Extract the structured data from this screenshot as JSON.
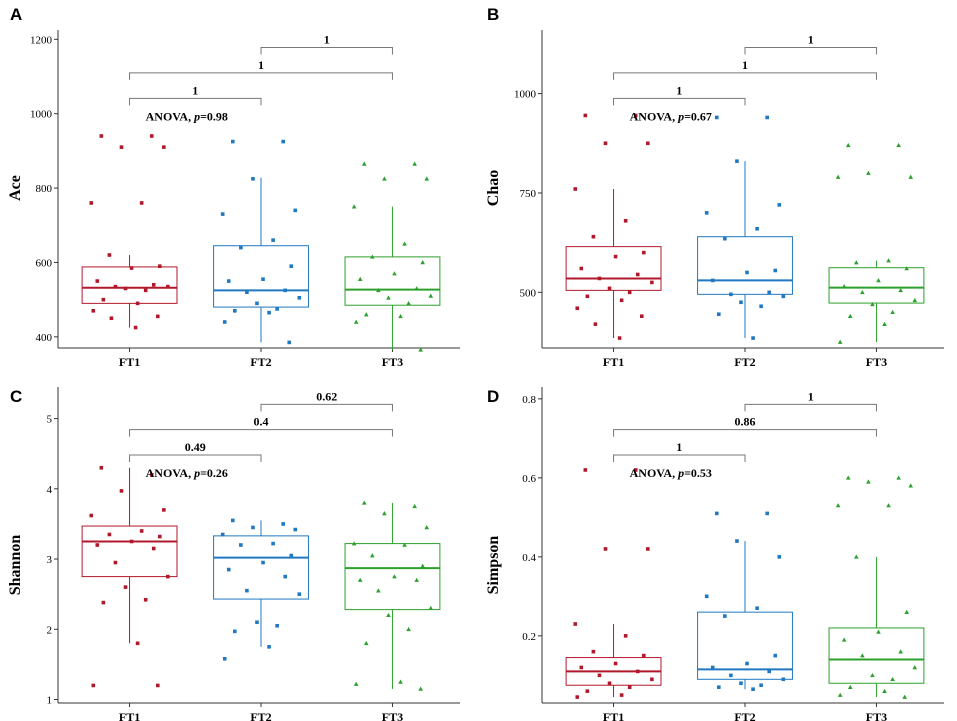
{
  "chart_data": [
    {
      "type": "box",
      "panel": "A",
      "ylabel": "Ace",
      "categories": [
        "FT1",
        "FT2",
        "FT3"
      ],
      "colors": [
        "#b2182b",
        "#1f78c1",
        "#2ca02c"
      ],
      "ylim": [
        370,
        1225
      ],
      "yticks": [
        400,
        600,
        800,
        1000,
        1200
      ],
      "annotation": {
        "prefix": "ANOVA, ",
        "p_italic": "p",
        "suffix": "=0.98"
      },
      "boxes": [
        {
          "min": 425,
          "q1": 490,
          "median": 532,
          "q3": 588,
          "max": 620
        },
        {
          "min": 385,
          "q1": 480,
          "median": 525,
          "q3": 645,
          "max": 828
        },
        {
          "min": 365,
          "q1": 485,
          "median": 527,
          "q3": 615,
          "max": 750
        }
      ],
      "points": [
        [
          940,
          940,
          910,
          910,
          760,
          760,
          620,
          590,
          585,
          550,
          540,
          535,
          535,
          530,
          525,
          500,
          490,
          470,
          455,
          450,
          425
        ],
        [
          925,
          925,
          825,
          740,
          730,
          660,
          640,
          590,
          555,
          550,
          525,
          520,
          505,
          490,
          475,
          470,
          465,
          440,
          385
        ],
        [
          865,
          865,
          825,
          825,
          750,
          650,
          615,
          600,
          570,
          555,
          530,
          525,
          510,
          505,
          490,
          460,
          455,
          440,
          365
        ]
      ],
      "comparisons": [
        {
          "groups": [
            "FT2",
            "FT3"
          ],
          "label": "1"
        },
        {
          "groups": [
            "FT1",
            "FT3"
          ],
          "label": "1"
        },
        {
          "groups": [
            "FT1",
            "FT2"
          ],
          "label": "1"
        }
      ]
    },
    {
      "type": "box",
      "panel": "B",
      "ylabel": "Chao",
      "categories": [
        "FT1",
        "FT2",
        "FT3"
      ],
      "colors": [
        "#b2182b",
        "#1f78c1",
        "#2ca02c"
      ],
      "ylim": [
        360,
        1160
      ],
      "yticks": [
        500,
        750,
        1000
      ],
      "annotation": {
        "prefix": "ANOVA, ",
        "p_italic": "p",
        "suffix": "=0.67"
      },
      "boxes": [
        {
          "min": 385,
          "q1": 505,
          "median": 535,
          "q3": 615,
          "max": 760
        },
        {
          "min": 385,
          "q1": 495,
          "median": 530,
          "q3": 640,
          "max": 830
        },
        {
          "min": 375,
          "q1": 473,
          "median": 512,
          "q3": 562,
          "max": 580
        }
      ],
      "points": [
        [
          945,
          945,
          875,
          875,
          760,
          680,
          640,
          600,
          590,
          560,
          545,
          535,
          525,
          510,
          500,
          490,
          480,
          460,
          440,
          420,
          385
        ],
        [
          940,
          940,
          830,
          720,
          700,
          660,
          635,
          555,
          550,
          530,
          500,
          495,
          490,
          475,
          465,
          445,
          385
        ],
        [
          870,
          870,
          800,
          790,
          790,
          580,
          575,
          560,
          530,
          515,
          505,
          500,
          480,
          470,
          450,
          440,
          420,
          375
        ]
      ],
      "comparisons": [
        {
          "groups": [
            "FT2",
            "FT3"
          ],
          "label": "1"
        },
        {
          "groups": [
            "FT1",
            "FT3"
          ],
          "label": "1"
        },
        {
          "groups": [
            "FT1",
            "FT2"
          ],
          "label": "1"
        }
      ]
    },
    {
      "type": "box",
      "panel": "C",
      "ylabel": "Shannon",
      "categories": [
        "FT1",
        "FT2",
        "FT3"
      ],
      "colors": [
        "#b2182b",
        "#1f78c1",
        "#2ca02c"
      ],
      "ylim": [
        0.95,
        5.45
      ],
      "yticks": [
        1,
        2,
        3,
        4,
        5
      ],
      "annotation": {
        "prefix": "ANOVA, ",
        "p_italic": "p",
        "suffix": "=0.26"
      },
      "boxes": [
        {
          "min": 1.8,
          "q1": 2.75,
          "median": 3.25,
          "q3": 3.47,
          "max": 4.3
        },
        {
          "min": 1.75,
          "q1": 2.43,
          "median": 3.02,
          "q3": 3.33,
          "max": 3.55
        },
        {
          "min": 1.15,
          "q1": 2.28,
          "median": 2.87,
          "q3": 3.22,
          "max": 3.8
        }
      ],
      "points": [
        [
          4.3,
          4.2,
          3.97,
          3.7,
          3.62,
          3.4,
          3.35,
          3.32,
          3.25,
          3.2,
          3.15,
          2.95,
          2.75,
          2.6,
          2.42,
          2.38,
          1.8,
          1.2,
          1.2
        ],
        [
          3.55,
          3.5,
          3.45,
          3.42,
          3.35,
          3.22,
          3.2,
          3.05,
          2.95,
          2.85,
          2.75,
          2.55,
          2.5,
          2.1,
          2.05,
          1.97,
          1.75,
          1.58
        ],
        [
          3.8,
          3.75,
          3.65,
          3.45,
          3.22,
          3.2,
          3.05,
          2.9,
          2.75,
          2.7,
          2.7,
          2.55,
          2.3,
          2.2,
          2.0,
          1.8,
          1.25,
          1.22,
          1.15
        ]
      ],
      "comparisons": [
        {
          "groups": [
            "FT2",
            "FT3"
          ],
          "label": "0.62"
        },
        {
          "groups": [
            "FT1",
            "FT3"
          ],
          "label": "0.4"
        },
        {
          "groups": [
            "FT1",
            "FT2"
          ],
          "label": "0.49"
        }
      ]
    },
    {
      "type": "box",
      "panel": "D",
      "ylabel": "Simpson",
      "categories": [
        "FT1",
        "FT2",
        "FT3"
      ],
      "colors": [
        "#b2182b",
        "#1f78c1",
        "#2ca02c"
      ],
      "ylim": [
        0.03,
        0.83
      ],
      "yticks": [
        0.2,
        0.4,
        0.6,
        0.8
      ],
      "annotation": {
        "prefix": "ANOVA, ",
        "p_italic": "p",
        "suffix": "=0.53"
      },
      "boxes": [
        {
          "min": 0.045,
          "q1": 0.075,
          "median": 0.11,
          "q3": 0.145,
          "max": 0.23
        },
        {
          "min": 0.065,
          "q1": 0.09,
          "median": 0.115,
          "q3": 0.26,
          "max": 0.44
        },
        {
          "min": 0.045,
          "q1": 0.08,
          "median": 0.14,
          "q3": 0.22,
          "max": 0.4
        }
      ],
      "points": [
        [
          0.62,
          0.62,
          0.42,
          0.42,
          0.23,
          0.2,
          0.16,
          0.15,
          0.13,
          0.12,
          0.11,
          0.1,
          0.09,
          0.08,
          0.07,
          0.06,
          0.05,
          0.045
        ],
        [
          0.51,
          0.51,
          0.44,
          0.4,
          0.3,
          0.27,
          0.25,
          0.15,
          0.13,
          0.12,
          0.11,
          0.1,
          0.09,
          0.08,
          0.075,
          0.07,
          0.065
        ],
        [
          0.6,
          0.6,
          0.59,
          0.58,
          0.53,
          0.53,
          0.4,
          0.26,
          0.21,
          0.19,
          0.16,
          0.15,
          0.12,
          0.1,
          0.09,
          0.07,
          0.06,
          0.05,
          0.045
        ]
      ],
      "comparisons": [
        {
          "groups": [
            "FT2",
            "FT3"
          ],
          "label": "1"
        },
        {
          "groups": [
            "FT1",
            "FT3"
          ],
          "label": "0.86"
        },
        {
          "groups": [
            "FT1",
            "FT2"
          ],
          "label": "1"
        }
      ]
    }
  ]
}
